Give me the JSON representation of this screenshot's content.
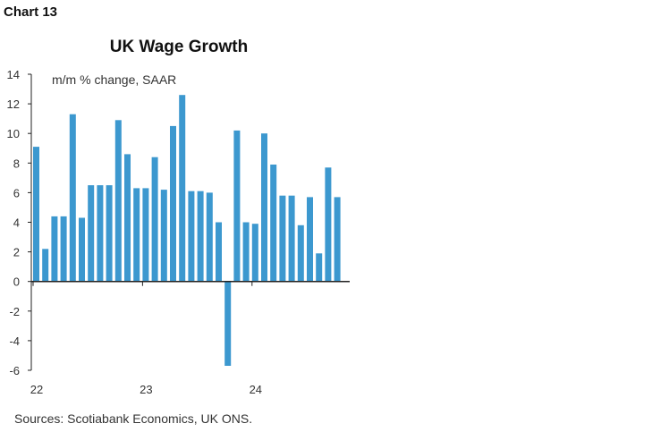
{
  "header": {
    "chart_label": "Chart 13"
  },
  "footer": {
    "source": "Sources: Scotiabank Economics, UK ONS."
  },
  "colors": {
    "bar": "#3c98cf",
    "axis": "#222222",
    "text": "#333333"
  },
  "chart_data": {
    "type": "bar",
    "title": "UK Wage Growth",
    "unit_label": "m/m % change, SAAR",
    "xlabel": "",
    "ylabel": "",
    "ylim": [
      -6,
      14
    ],
    "yticks": [
      14,
      12,
      10,
      8,
      6,
      4,
      2,
      0,
      -2,
      -4,
      -6
    ],
    "grid": false,
    "legend": "none",
    "x_tick_labels": [
      {
        "label": "22",
        "index": 0
      },
      {
        "label": "23",
        "index": 12
      },
      {
        "label": "24",
        "index": 24
      }
    ],
    "values": [
      9.1,
      2.2,
      4.4,
      4.4,
      11.3,
      4.3,
      6.5,
      6.5,
      6.5,
      10.9,
      8.6,
      6.3,
      6.3,
      8.4,
      6.2,
      10.5,
      12.6,
      6.1,
      6.1,
      6.0,
      4.0,
      -5.7,
      10.2,
      4.0,
      3.9,
      10.0,
      7.9,
      5.8,
      5.8,
      3.8,
      5.7,
      1.9,
      7.7,
      5.7
    ]
  }
}
